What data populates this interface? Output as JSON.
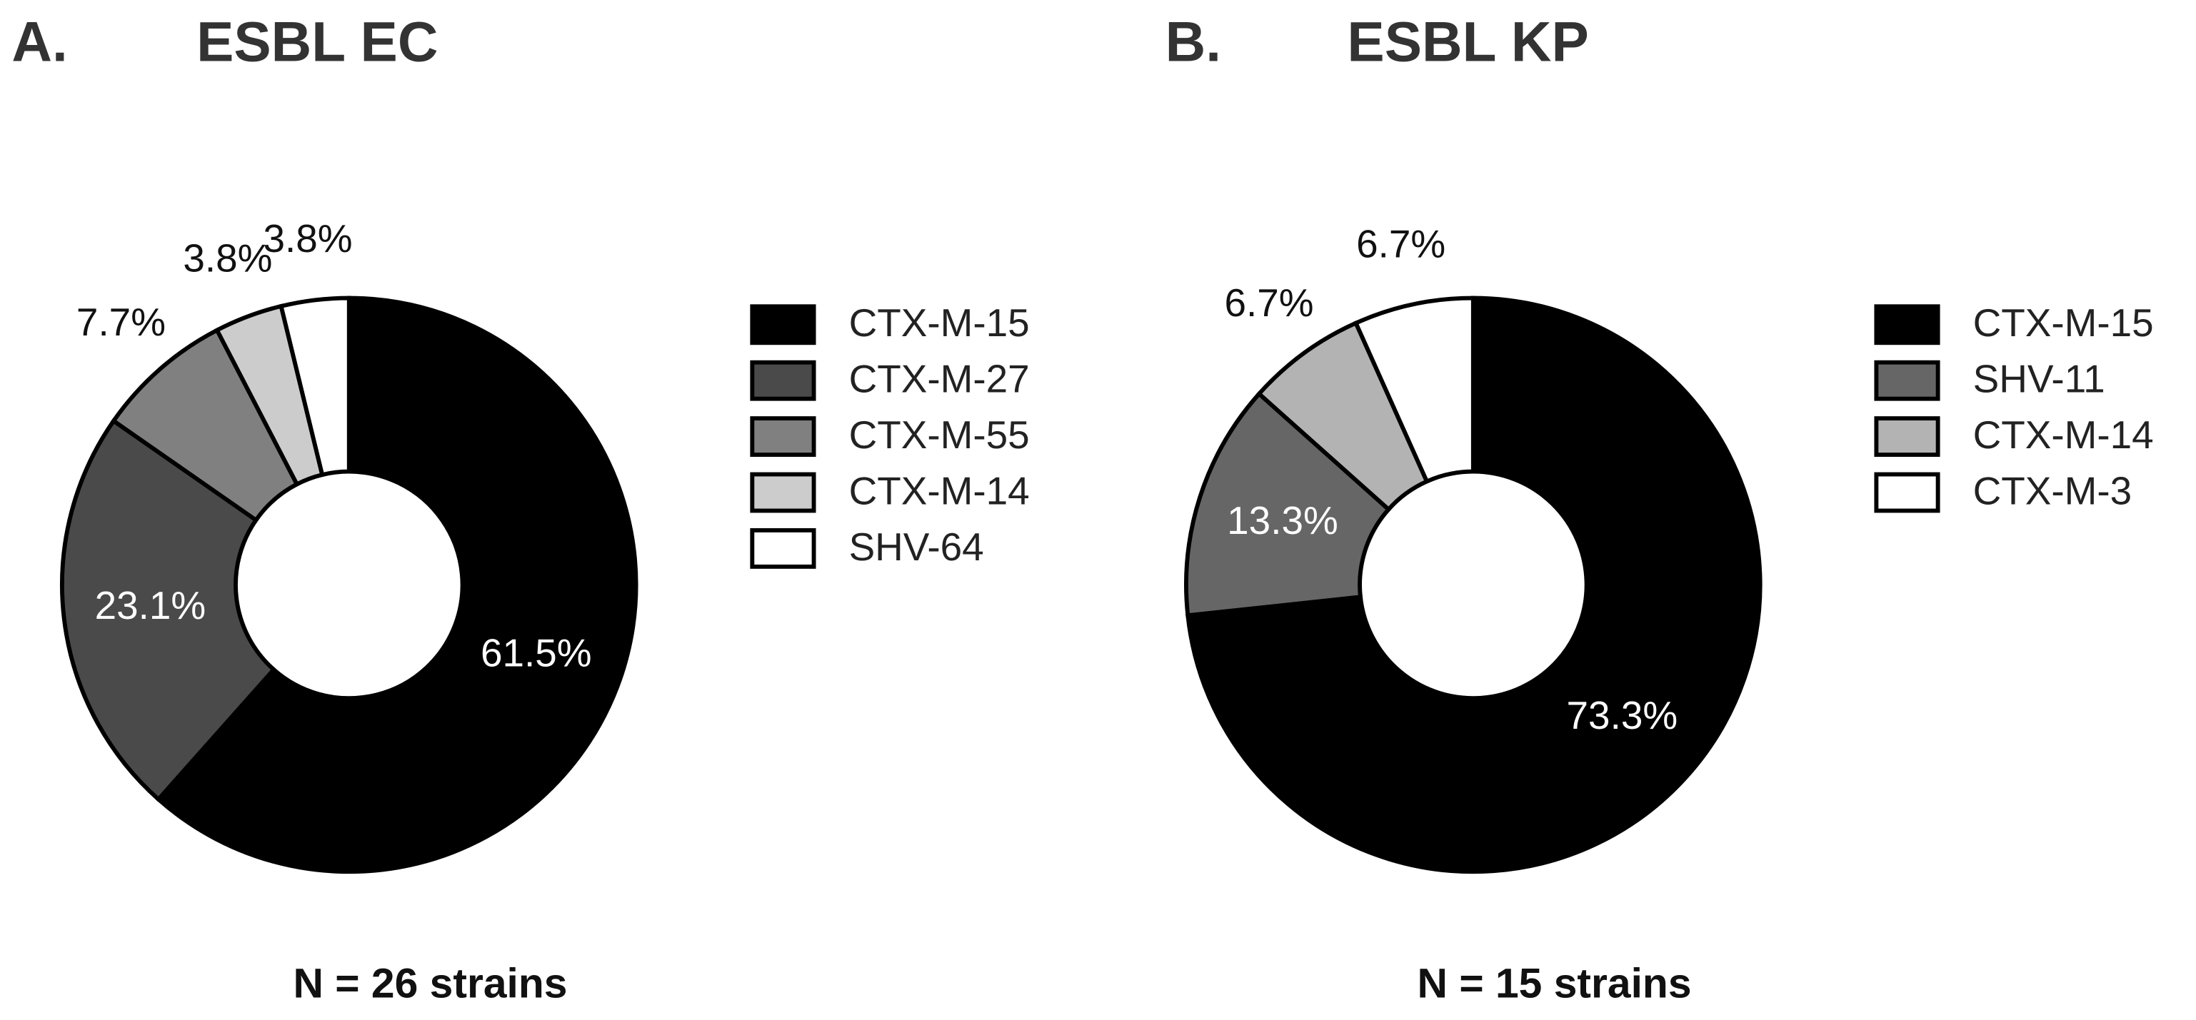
{
  "chart_data": [
    {
      "type": "pie",
      "panel": "A.",
      "title": "ESBL EC",
      "categories": [
        "CTX-M-15",
        "CTX-M-27",
        "CTX-M-55",
        "CTX-M-14",
        "SHV-64"
      ],
      "values": [
        61.5,
        23.1,
        7.7,
        3.8,
        3.8
      ],
      "value_labels": [
        "61.5%",
        "23.1%",
        "7.7%",
        "3.8%",
        "3.8%"
      ],
      "colors": [
        "#000000",
        "#4a4a4a",
        "#808080",
        "#cccccc",
        "#ffffff"
      ],
      "note": "N = 26 strains"
    },
    {
      "type": "pie",
      "panel": "B.",
      "title": "ESBL KP",
      "categories": [
        "CTX-M-15",
        "SHV-11",
        "CTX-M-14",
        "CTX-M-3"
      ],
      "values": [
        73.3,
        13.3,
        6.7,
        6.7
      ],
      "value_labels": [
        "73.3%",
        "13.3%",
        "6.7%",
        "6.7%"
      ],
      "colors": [
        "#000000",
        "#666666",
        "#b3b3b3",
        "#ffffff"
      ],
      "note": "N = 15 strains"
    }
  ]
}
